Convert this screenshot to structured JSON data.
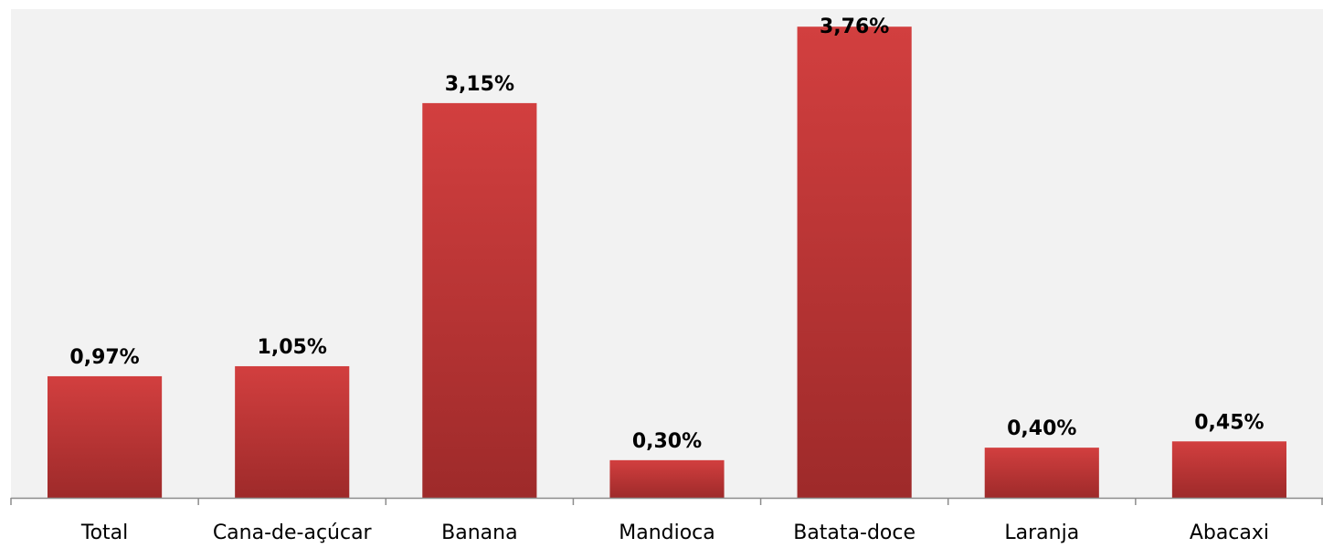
{
  "chart_data": {
    "type": "bar",
    "title": "",
    "xlabel": "",
    "ylabel": "",
    "categories": [
      "Total",
      "Cana-de-açúcar",
      "Banana",
      "Mandioca",
      "Batata-doce",
      "Laranja",
      "Abacaxi"
    ],
    "values": [
      0.97,
      1.05,
      3.15,
      0.3,
      3.76,
      0.4,
      0.45
    ],
    "data_labels": [
      "0,97%",
      "1,05%",
      "3,15%",
      "0,30%",
      "3,76%",
      "0,40%",
      "0,45%"
    ],
    "ylim": [
      0,
      3.9
    ],
    "grid": false,
    "legend": "none",
    "colors": {
      "plot_background": "#f2f2f2",
      "bar_top": "#d23f3f",
      "bar_bottom": "#9e2a2a",
      "axis": "#8c8c8c"
    }
  }
}
